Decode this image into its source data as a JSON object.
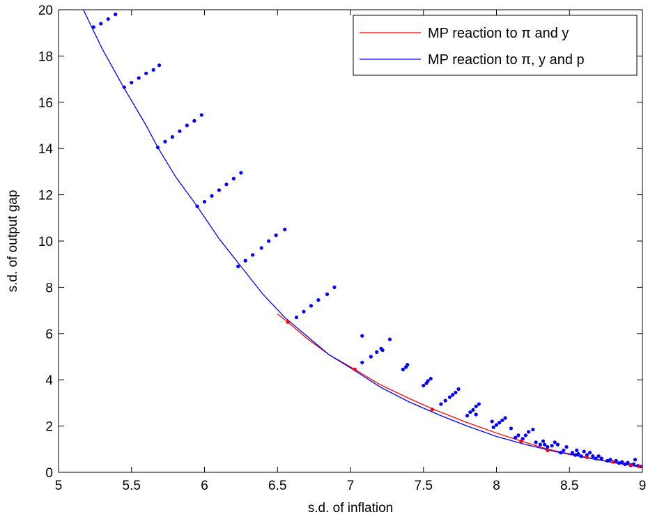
{
  "chart_data": {
    "type": "line",
    "xlabel": "s.d. of inflation",
    "ylabel": "s.d. of output gap",
    "xlim": [
      5,
      9
    ],
    "ylim": [
      0,
      20
    ],
    "xticks": [
      5,
      5.5,
      6,
      6.5,
      7,
      7.5,
      8,
      8.5,
      9
    ],
    "xtick_labels": [
      "5",
      "5.5",
      "6",
      "6.5",
      "7",
      "7.5",
      "8",
      "8.5",
      "9"
    ],
    "yticks": [
      0,
      2,
      4,
      6,
      8,
      10,
      12,
      14,
      16,
      18,
      20
    ],
    "ytick_labels": [
      "0",
      "2",
      "4",
      "6",
      "8",
      "10",
      "12",
      "14",
      "16",
      "18",
      "20"
    ],
    "grid": false,
    "legend_position": "top-right",
    "series": [
      {
        "name": "MP reaction to π and y",
        "color": "#ff0000",
        "x": [
          6.5,
          6.57,
          6.7,
          6.85,
          7.03,
          7.2,
          7.4,
          7.56,
          7.8,
          8.0,
          8.17,
          8.35,
          8.5,
          8.62,
          8.8,
          8.9,
          9.0
        ],
        "y": [
          6.85,
          6.5,
          5.8,
          5.1,
          4.45,
          3.8,
          3.2,
          2.75,
          2.15,
          1.7,
          1.35,
          1.0,
          0.8,
          0.65,
          0.42,
          0.32,
          0.2
        ]
      },
      {
        "name": "MP reaction to π, y and p",
        "color": "#0000ff",
        "x": [
          5.17,
          5.3,
          5.45,
          5.6,
          5.68,
          5.8,
          5.95,
          6.1,
          6.25,
          6.4,
          6.55,
          6.7,
          6.85,
          7.03,
          7.2,
          7.4,
          7.6,
          7.8,
          8.0,
          8.2,
          8.4,
          8.6,
          8.8,
          9.0
        ],
        "y": [
          20.0,
          18.3,
          16.6,
          15.0,
          14.05,
          12.8,
          11.5,
          10.1,
          8.9,
          7.7,
          6.7,
          5.9,
          5.1,
          4.4,
          3.7,
          3.05,
          2.5,
          2.0,
          1.55,
          1.2,
          0.9,
          0.65,
          0.42,
          0.25
        ]
      }
    ],
    "markers": {
      "red": {
        "color": "#ff0000",
        "points": [
          [
            6.57,
            6.5
          ],
          [
            7.03,
            4.45
          ],
          [
            7.56,
            2.72
          ],
          [
            8.17,
            1.35
          ],
          [
            8.35,
            0.95
          ],
          [
            8.62,
            0.65
          ],
          [
            8.8,
            0.45
          ],
          [
            8.92,
            0.33
          ],
          [
            8.98,
            0.25
          ]
        ]
      },
      "blue": {
        "color": "#0000ff",
        "points": [
          [
            5.24,
            19.25
          ],
          [
            5.29,
            19.4
          ],
          [
            5.34,
            19.6
          ],
          [
            5.39,
            19.8
          ],
          [
            5.45,
            16.65
          ],
          [
            5.5,
            16.85
          ],
          [
            5.55,
            17.05
          ],
          [
            5.6,
            17.25
          ],
          [
            5.65,
            17.4
          ],
          [
            5.69,
            17.6
          ],
          [
            5.68,
            14.05
          ],
          [
            5.73,
            14.3
          ],
          [
            5.78,
            14.5
          ],
          [
            5.83,
            14.75
          ],
          [
            5.88,
            15.0
          ],
          [
            5.93,
            15.2
          ],
          [
            5.98,
            15.45
          ],
          [
            5.95,
            11.5
          ],
          [
            6.0,
            11.7
          ],
          [
            6.05,
            11.95
          ],
          [
            6.1,
            12.2
          ],
          [
            6.15,
            12.45
          ],
          [
            6.2,
            12.7
          ],
          [
            6.25,
            12.95
          ],
          [
            6.23,
            8.9
          ],
          [
            6.28,
            9.15
          ],
          [
            6.33,
            9.4
          ],
          [
            6.39,
            9.7
          ],
          [
            6.44,
            10.0
          ],
          [
            6.49,
            10.25
          ],
          [
            6.55,
            10.5
          ],
          [
            6.63,
            6.7
          ],
          [
            6.68,
            6.95
          ],
          [
            6.73,
            7.2
          ],
          [
            6.78,
            7.45
          ],
          [
            6.84,
            7.7
          ],
          [
            6.89,
            8.0
          ],
          [
            7.08,
            5.9
          ],
          [
            7.08,
            4.75
          ],
          [
            7.14,
            5.0
          ],
          [
            7.18,
            5.2
          ],
          [
            7.21,
            5.35
          ],
          [
            7.22,
            5.28
          ],
          [
            7.27,
            5.75
          ],
          [
            7.36,
            4.45
          ],
          [
            7.38,
            4.55
          ],
          [
            7.39,
            4.65
          ],
          [
            7.5,
            3.75
          ],
          [
            7.52,
            3.85
          ],
          [
            7.53,
            3.95
          ],
          [
            7.55,
            4.05
          ],
          [
            7.62,
            2.95
          ],
          [
            7.65,
            3.1
          ],
          [
            7.68,
            3.25
          ],
          [
            7.7,
            3.35
          ],
          [
            7.72,
            3.45
          ],
          [
            7.74,
            3.6
          ],
          [
            7.8,
            2.45
          ],
          [
            7.82,
            2.6
          ],
          [
            7.84,
            2.7
          ],
          [
            7.86,
            2.85
          ],
          [
            7.88,
            2.95
          ],
          [
            7.86,
            2.5
          ],
          [
            7.97,
            2.2
          ],
          [
            7.98,
            1.95
          ],
          [
            8.0,
            2.05
          ],
          [
            8.02,
            2.15
          ],
          [
            8.04,
            2.25
          ],
          [
            8.06,
            2.35
          ],
          [
            8.1,
            1.9
          ],
          [
            8.13,
            1.5
          ],
          [
            8.15,
            1.6
          ],
          [
            8.18,
            1.45
          ],
          [
            8.2,
            1.6
          ],
          [
            8.22,
            1.75
          ],
          [
            8.25,
            1.85
          ],
          [
            8.27,
            1.3
          ],
          [
            8.3,
            1.2
          ],
          [
            8.32,
            1.35
          ],
          [
            8.33,
            1.2
          ],
          [
            8.35,
            1.1
          ],
          [
            8.38,
            1.15
          ],
          [
            8.4,
            1.3
          ],
          [
            8.42,
            1.2
          ],
          [
            8.44,
            0.85
          ],
          [
            8.46,
            0.95
          ],
          [
            8.48,
            1.1
          ],
          [
            8.52,
            0.85
          ],
          [
            8.54,
            0.75
          ],
          [
            8.55,
            0.95
          ],
          [
            8.56,
            0.8
          ],
          [
            8.58,
            0.7
          ],
          [
            8.6,
            0.9
          ],
          [
            8.62,
            0.75
          ],
          [
            8.64,
            0.85
          ],
          [
            8.66,
            0.7
          ],
          [
            8.68,
            0.6
          ],
          [
            8.7,
            0.7
          ],
          [
            8.72,
            0.6
          ],
          [
            8.76,
            0.5
          ],
          [
            8.78,
            0.55
          ],
          [
            8.8,
            0.45
          ],
          [
            8.82,
            0.5
          ],
          [
            8.84,
            0.4
          ],
          [
            8.86,
            0.45
          ],
          [
            8.88,
            0.35
          ],
          [
            8.9,
            0.42
          ],
          [
            8.92,
            0.3
          ],
          [
            8.94,
            0.35
          ],
          [
            8.95,
            0.55
          ],
          [
            8.97,
            0.28
          ],
          [
            8.99,
            0.25
          ]
        ]
      }
    }
  }
}
